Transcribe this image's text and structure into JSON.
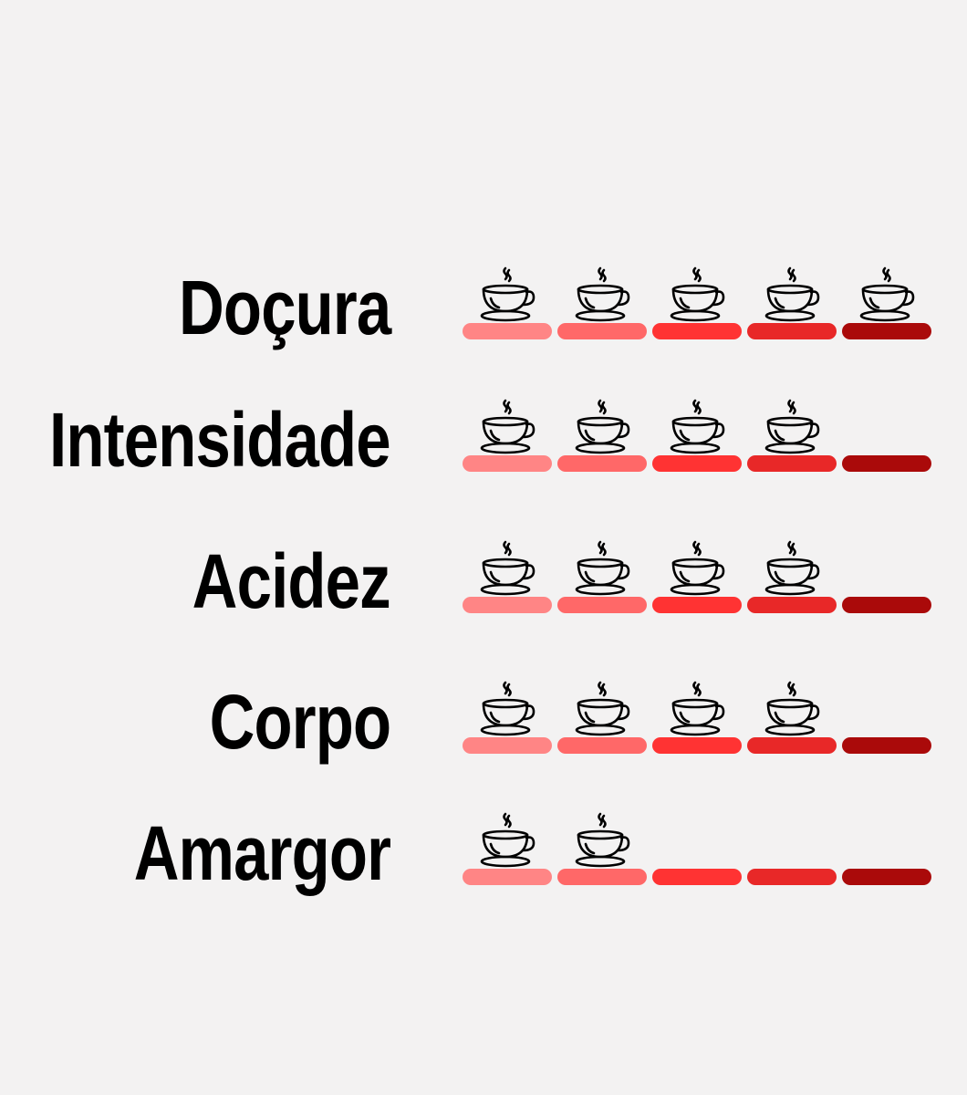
{
  "scale_max": 5,
  "segment_colors": [
    "#ff8585",
    "#ff6868",
    "#ff3333",
    "#e82828",
    "#aa0a0a"
  ],
  "icon": "steaming-coffee-cup-icon",
  "attributes": [
    {
      "label": "Doçura",
      "rating": 5
    },
    {
      "label": "Intensidade",
      "rating": 4
    },
    {
      "label": "Acidez",
      "rating": 4
    },
    {
      "label": "Corpo",
      "rating": 4
    },
    {
      "label": "Amargor",
      "rating": 2
    }
  ]
}
